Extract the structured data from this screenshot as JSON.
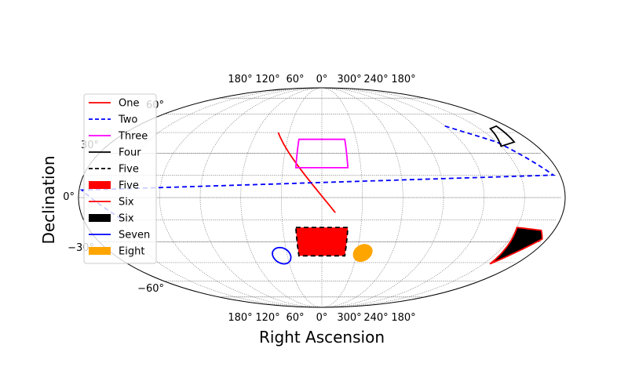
{
  "chart_data": {
    "type": "line",
    "projection": "mollweide",
    "xlabel": "Right Ascension",
    "ylabel": "Declination",
    "grid": true,
    "legend_position": "upper-left",
    "ra_tick_labels": [
      "180°",
      "120°",
      "60°",
      "0°",
      "300°",
      "240°",
      "180°"
    ],
    "ra_ticks": [
      180,
      120,
      60,
      0,
      300,
      240,
      180
    ],
    "dec_tick_labels": [
      "−60°",
      "−30°",
      "0°",
      "30°",
      "60°"
    ],
    "dec_ticks": [
      -60,
      -30,
      0,
      30,
      60
    ],
    "series": [
      {
        "name": "One",
        "kind": "line",
        "color": "#ff0000",
        "dash": "solid",
        "points": [
          [
            40,
            45
          ],
          [
            -10,
            -10
          ]
        ]
      },
      {
        "name": "Two",
        "kind": "line",
        "color": "#0000ff",
        "dash": "dashed",
        "points": [
          [
            -120,
            50
          ],
          [
            -150,
            38
          ],
          [
            -175,
            15
          ],
          [
            178,
            5
          ],
          [
            150,
            -15
          ]
        ]
      },
      {
        "name": "Three",
        "kind": "polygon",
        "color": "#ff00ff",
        "dash": "solid",
        "fill": "none",
        "points": [
          [
            20,
            20
          ],
          [
            -20,
            20
          ],
          [
            -20,
            40
          ],
          [
            20,
            40
          ]
        ]
      },
      {
        "name": "Four",
        "kind": "polygon",
        "color": "#000000",
        "dash": "solid",
        "fill": "none",
        "points": [
          [
            -150,
            35
          ],
          [
            -165,
            38
          ],
          [
            -170,
            50
          ],
          [
            -160,
            48
          ]
        ]
      },
      {
        "name": "Five",
        "kind": "polygon",
        "color": "#000000",
        "dash": "dashed",
        "fill": "#ff0000",
        "points": [
          [
            20,
            -20
          ],
          [
            -20,
            -20
          ],
          [
            -20,
            -40
          ],
          [
            20,
            -40
          ]
        ]
      },
      {
        "name": "Six",
        "kind": "polygon",
        "color": "#ff0000",
        "dash": "solid",
        "fill": "#000000",
        "points": [
          [
            -150,
            -20
          ],
          [
            -170,
            -22
          ],
          [
            -176,
            -28
          ],
          [
            -156,
            -46
          ]
        ]
      },
      {
        "name": "Seven",
        "kind": "ellipse",
        "color": "#0000ff",
        "dash": "solid",
        "fill": "none",
        "center": [
          35,
          -40
        ],
        "radius": 6
      },
      {
        "name": "Eight",
        "kind": "ellipse",
        "color": "#ffa500",
        "dash": "solid",
        "fill": "#ffa500",
        "center": [
          -35,
          -38
        ],
        "radius": 6
      }
    ],
    "legend": [
      {
        "label": "One",
        "kind": "line",
        "color": "#ff0000",
        "dash": "solid"
      },
      {
        "label": "Two",
        "kind": "line",
        "color": "#0000ff",
        "dash": "dashed"
      },
      {
        "label": "Three",
        "kind": "line",
        "color": "#ff00ff",
        "dash": "solid"
      },
      {
        "label": "Four",
        "kind": "line",
        "color": "#000000",
        "dash": "solid"
      },
      {
        "label": "Five",
        "kind": "line",
        "color": "#000000",
        "dash": "dashed"
      },
      {
        "label": "Five",
        "kind": "patch",
        "color": "#ff0000"
      },
      {
        "label": "Six",
        "kind": "line",
        "color": "#ff0000",
        "dash": "solid"
      },
      {
        "label": "Six",
        "kind": "patch",
        "color": "#000000"
      },
      {
        "label": "Seven",
        "kind": "line",
        "color": "#0000ff",
        "dash": "solid"
      },
      {
        "label": "Eight",
        "kind": "patch",
        "color": "#ffa500"
      }
    ]
  }
}
